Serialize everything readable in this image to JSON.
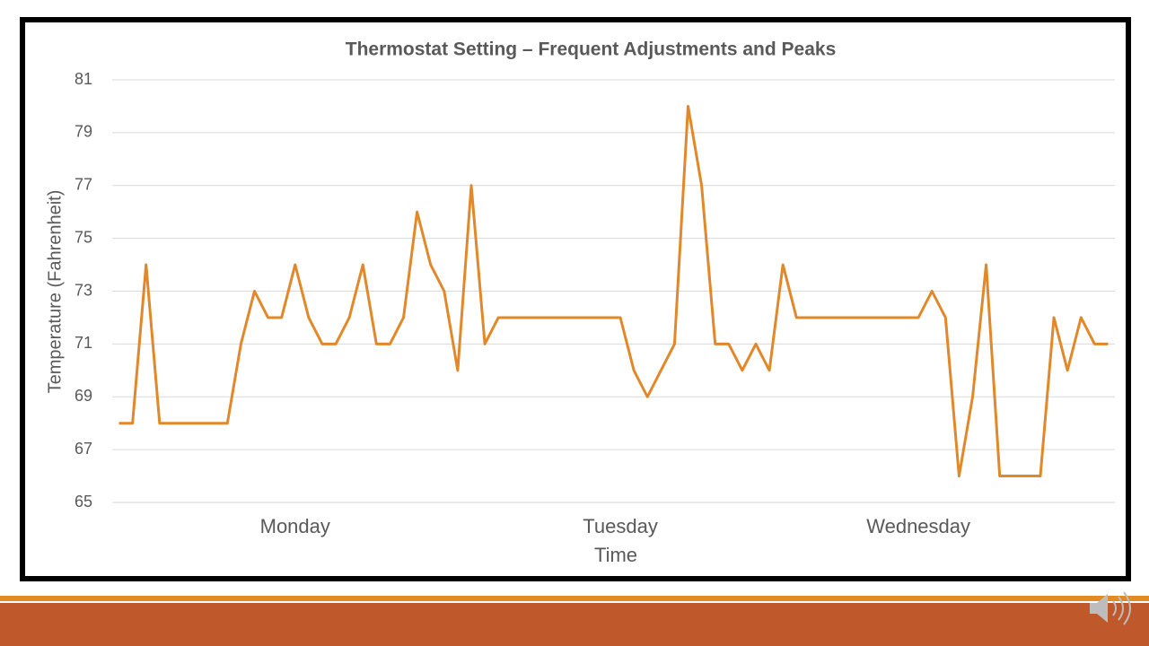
{
  "chart_data": {
    "type": "line",
    "title": "Thermostat Setting – Frequent Adjustments and Peaks",
    "x_label": "Time",
    "y_label": "Temperature (Fahrenheit)",
    "categories": [
      null,
      null,
      null,
      null,
      null,
      null,
      null,
      null,
      null,
      null,
      null,
      null,
      null,
      "Monday",
      null,
      null,
      null,
      null,
      null,
      null,
      null,
      null,
      null,
      null,
      null,
      null,
      null,
      null,
      null,
      null,
      null,
      null,
      null,
      null,
      null,
      null,
      null,
      "Tuesday",
      null,
      null,
      null,
      null,
      null,
      null,
      null,
      null,
      null,
      null,
      null,
      null,
      null,
      null,
      null,
      null,
      null,
      null,
      null,
      null,
      null,
      "Wednesday",
      null,
      null,
      null,
      null,
      null,
      null,
      null,
      null,
      null,
      null,
      null,
      null,
      null,
      null
    ],
    "series": [
      {
        "name": "Thermostat Setting",
        "color": "#e0882a",
        "values": [
          68,
          68,
          74,
          68,
          68,
          68,
          68,
          68,
          68,
          71,
          73,
          72,
          72,
          74,
          72,
          71,
          71,
          72,
          74,
          71,
          71,
          72,
          76,
          74,
          73,
          70,
          77,
          71,
          72,
          72,
          72,
          72,
          72,
          72,
          72,
          72,
          72,
          72,
          70,
          69,
          70,
          71,
          80,
          77,
          71,
          71,
          70,
          71,
          70,
          74,
          72,
          72,
          72,
          72,
          72,
          72,
          72,
          72,
          72,
          72,
          73,
          72,
          66,
          69,
          74,
          66,
          66,
          66,
          66,
          72,
          70,
          72,
          71,
          71
        ]
      }
    ],
    "ylim": [
      65,
      81
    ],
    "yticks": [
      65,
      67,
      69,
      71,
      73,
      75,
      77,
      79,
      81
    ],
    "grid": true
  }
}
